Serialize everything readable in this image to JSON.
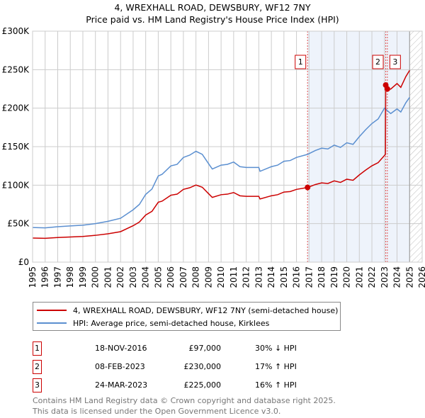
{
  "chart_data": {
    "type": "line",
    "title": "4, WREXHALL ROAD, DEWSBURY, WF12 7NY",
    "subtitle": "Price paid vs. HM Land Registry's House Price Index (HPI)",
    "xlim": [
      1995,
      2026
    ],
    "ylim": [
      0,
      300000
    ],
    "x_ticks": [
      "1995",
      "1996",
      "1997",
      "1998",
      "1999",
      "2000",
      "2001",
      "2002",
      "2003",
      "2004",
      "2005",
      "2006",
      "2007",
      "2008",
      "2009",
      "2010",
      "2011",
      "2012",
      "2013",
      "2014",
      "2015",
      "2016",
      "2017",
      "2018",
      "2019",
      "2020",
      "2021",
      "2022",
      "2023",
      "2024",
      "2025",
      "2026"
    ],
    "y_ticks": [
      {
        "v": 0,
        "label": "£0"
      },
      {
        "v": 50000,
        "label": "£50K"
      },
      {
        "v": 100000,
        "label": "£100K"
      },
      {
        "v": 150000,
        "label": "£150K"
      },
      {
        "v": 200000,
        "label": "£200K"
      },
      {
        "v": 250000,
        "label": "£250K"
      },
      {
        "v": 300000,
        "label": "£300K"
      }
    ],
    "grid": true,
    "shaded_from": 2016.88,
    "data_end": 2025.0,
    "series": [
      {
        "name": "4, WREXHALL ROAD, DEWSBURY, WF12 7NY (semi-detached house)",
        "color": "#cc0000",
        "x": [
          1995,
          1996,
          1997,
          1998,
          1999,
          2000,
          2001,
          2002,
          2003,
          2003.5,
          2004,
          2004.5,
          2005,
          2005.3,
          2006,
          2006.5,
          2007,
          2007.5,
          2008,
          2008.5,
          2009,
          2009.3,
          2010,
          2010.5,
          2011,
          2011.5,
          2012,
          2012.5,
          2013,
          2013.1,
          2014,
          2014.5,
          2015,
          2015.5,
          2016,
          2016.88,
          2017.5,
          2018,
          2018.5,
          2019,
          2019.5,
          2020,
          2020.5,
          2021,
          2021.5,
          2022,
          2022.5,
          2023.08,
          2023.1,
          2023.23,
          2023.5,
          2024,
          2024.3,
          2024.7,
          2025
        ],
        "y": [
          31300,
          30900,
          32000,
          32700,
          33400,
          34800,
          36800,
          39600,
          47300,
          52100,
          61200,
          66000,
          77800,
          79200,
          86900,
          88300,
          94500,
          96600,
          100100,
          97300,
          89000,
          84100,
          87600,
          88300,
          90400,
          86200,
          85500,
          85500,
          85500,
          82000,
          86200,
          87600,
          91000,
          91700,
          94500,
          97000,
          100800,
          102900,
          102200,
          105600,
          103600,
          107700,
          106300,
          113300,
          119500,
          125100,
          129300,
          140000,
          230000,
          225000,
          224800,
          232000,
          227000,
          241000,
          249000
        ]
      },
      {
        "name": "HPI: Average price, semi-detached house, Kirklees",
        "color": "#5b8fd0",
        "x": [
          1995,
          1996,
          1997,
          1998,
          1999,
          2000,
          2001,
          2002,
          2003,
          2003.5,
          2004,
          2004.5,
          2005,
          2005.3,
          2006,
          2006.5,
          2007,
          2007.5,
          2008,
          2008.5,
          2009,
          2009.3,
          2010,
          2010.5,
          2011,
          2011.5,
          2012,
          2012.5,
          2013,
          2013.1,
          2014,
          2014.5,
          2015,
          2015.5,
          2016,
          2016.88,
          2017.5,
          2018,
          2018.5,
          2019,
          2019.5,
          2020,
          2020.5,
          2021,
          2021.5,
          2022,
          2022.5,
          2023,
          2023.5,
          2024,
          2024.3,
          2024.7,
          2025
        ],
        "y": [
          45000,
          44500,
          46000,
          47000,
          48000,
          50000,
          53000,
          57000,
          68000,
          75000,
          88000,
          95000,
          112000,
          114000,
          125000,
          127000,
          136000,
          139000,
          144000,
          140000,
          128000,
          121000,
          126000,
          127000,
          130000,
          124000,
          123000,
          123000,
          123000,
          118000,
          124000,
          126000,
          131000,
          132000,
          136000,
          140000,
          145000,
          148000,
          147000,
          152000,
          149000,
          155000,
          153000,
          163000,
          172000,
          180000,
          186000,
          200000,
          193000,
          199000,
          195000,
          207000,
          214000
        ]
      }
    ],
    "sales": [
      {
        "n": "1",
        "date": "18-NOV-2016",
        "x": 2016.88,
        "price": 97000,
        "price_label": "£97,000",
        "hpi": "30% ↓ HPI"
      },
      {
        "n": "2",
        "date": "08-FEB-2023",
        "x": 2023.1,
        "price": 230000,
        "price_label": "£230,000",
        "hpi": "17% ↑ HPI"
      },
      {
        "n": "3",
        "date": "24-MAR-2023",
        "x": 2023.23,
        "price": 225000,
        "price_label": "£225,000",
        "hpi": "16% ↑ HPI"
      }
    ]
  },
  "footer": {
    "line1": "Contains HM Land Registry data © Crown copyright and database right 2025.",
    "line2": "This data is licensed under the Open Government Licence v3.0."
  }
}
